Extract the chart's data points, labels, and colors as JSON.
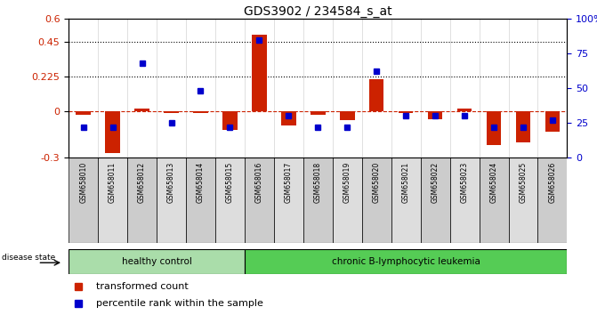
{
  "title": "GDS3902 / 234584_s_at",
  "samples": [
    "GSM658010",
    "GSM658011",
    "GSM658012",
    "GSM658013",
    "GSM658014",
    "GSM658015",
    "GSM658016",
    "GSM658017",
    "GSM658018",
    "GSM658019",
    "GSM658020",
    "GSM658021",
    "GSM658022",
    "GSM658023",
    "GSM658024",
    "GSM658025",
    "GSM658026"
  ],
  "red_bars": [
    -0.02,
    -0.27,
    0.02,
    -0.01,
    -0.01,
    -0.12,
    0.495,
    -0.09,
    -0.02,
    -0.06,
    0.21,
    -0.01,
    -0.05,
    0.02,
    -0.22,
    -0.2,
    -0.13
  ],
  "blue_dots": [
    22,
    22,
    68,
    25,
    48,
    22,
    85,
    30,
    22,
    22,
    62,
    30,
    30,
    30,
    22,
    22,
    27
  ],
  "ylim_left": [
    -0.3,
    0.6
  ],
  "ylim_right": [
    0,
    100
  ],
  "yticks_left": [
    -0.3,
    0.0,
    0.225,
    0.45,
    0.6
  ],
  "ytick_labels_left": [
    "-0.3",
    "0",
    "0.225",
    "0.45",
    "0.6"
  ],
  "yticks_right": [
    0,
    25,
    50,
    75,
    100
  ],
  "ytick_labels_right": [
    "0",
    "25",
    "50",
    "75",
    "100%"
  ],
  "hlines": [
    0.45,
    0.225
  ],
  "healthy_count": 6,
  "total_count": 17,
  "group_healthy_label": "healthy control",
  "group_cll_label": "chronic B-lymphocytic leukemia",
  "group_healthy_color": "#aaddaa",
  "group_cll_color": "#55cc55",
  "disease_state_label": "disease state",
  "legend_red": "transformed count",
  "legend_blue": "percentile rank within the sample",
  "bar_color": "#CC2200",
  "dot_color": "#0000CC",
  "bg_color": "#FFFFFF",
  "plot_bg": "#FFFFFF",
  "tick_label_color_left": "#CC2200",
  "tick_label_color_right": "#0000CC",
  "col_bg_odd": "#d8d8d8",
  "col_bg_even": "#e8e8e8"
}
